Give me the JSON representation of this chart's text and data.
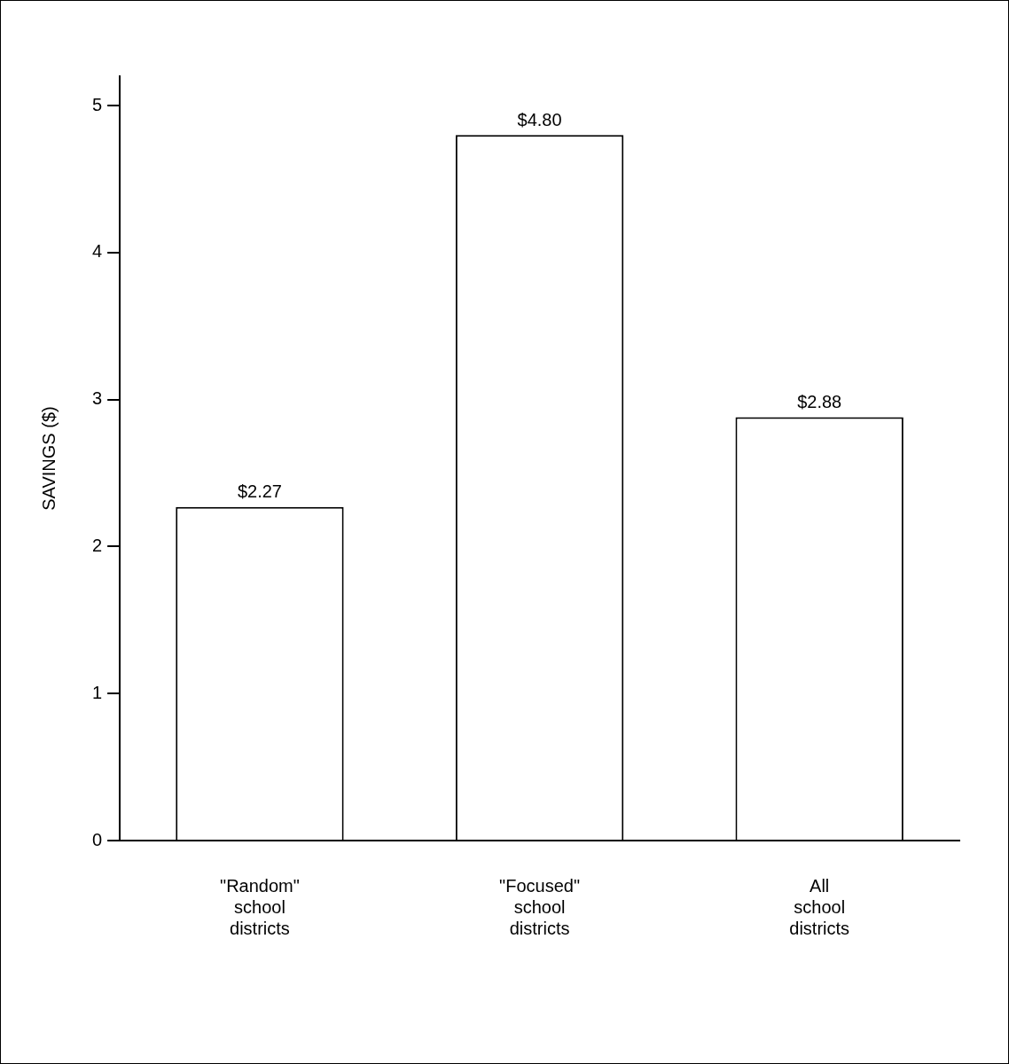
{
  "chart_data": {
    "type": "bar",
    "ylabel": "SAVINGS ($)",
    "categories": [
      "\"Random\" school districts",
      "\"Focused\" school districts",
      "All school districts"
    ],
    "values": [
      2.27,
      4.8,
      2.88
    ],
    "value_labels": [
      "$2.27",
      "$4.80",
      "$2.88"
    ],
    "color": "#ffffff",
    "ylim": [
      0,
      5.2
    ],
    "yticks": [
      0,
      1,
      2,
      3,
      4,
      5
    ],
    "grid": false,
    "legend": false
  }
}
